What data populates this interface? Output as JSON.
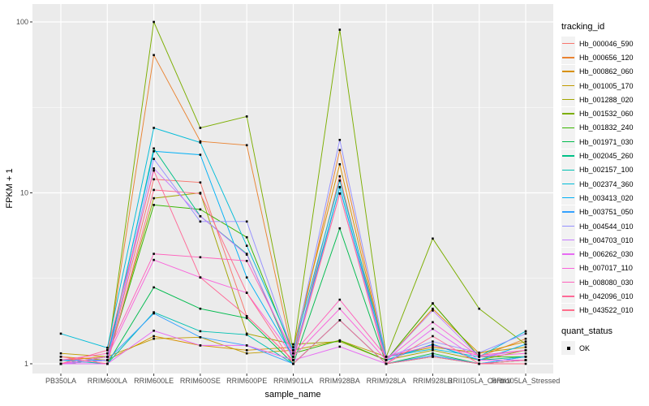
{
  "chart_data": {
    "type": "line",
    "title": "",
    "xlabel": "sample_name",
    "ylabel": "FPKM + 1",
    "y_scale": "log10",
    "ylim": [
      0.88,
      126
    ],
    "y_major_ticks": [
      1,
      10,
      100
    ],
    "y_minor_gridlines": [
      3.162,
      31.62
    ],
    "grid": "on",
    "panel_background": "#EBEBEB",
    "gridline_color": "#FFFFFF",
    "point_shape": "filled-square",
    "point_color": "#000000",
    "categories": [
      "PB350LA",
      "RRIM600LA",
      "RRIM600LE",
      "RRIM600SE",
      "RRIM600PE",
      "RRIM901LA",
      "RRIM928BA",
      "RRIM928LA",
      "RRIM928LB",
      "RRII105LA_Control",
      "RRII105LA_Stressed"
    ],
    "series": [
      {
        "name": "Hb_000046_590",
        "color": "#F8766D",
        "values": [
          1.0,
          1.05,
          12.0,
          11.5,
          1.9,
          1.05,
          12.5,
          1.0,
          1.1,
          1.0,
          1.05
        ]
      },
      {
        "name": "Hb_000656_120",
        "color": "#EA8331",
        "values": [
          1.05,
          1.1,
          64.0,
          20.0,
          19.0,
          1.1,
          17.8,
          1.05,
          2.26,
          1.1,
          1.4
        ]
      },
      {
        "name": "Hb_000862_060",
        "color": "#D89000",
        "values": [
          1.1,
          1.05,
          1.45,
          1.28,
          1.2,
          1.25,
          14.7,
          1.05,
          2.1,
          1.15,
          1.35
        ]
      },
      {
        "name": "Hb_001005_170",
        "color": "#C09B00",
        "values": [
          1.15,
          1.1,
          1.4,
          1.43,
          1.15,
          1.2,
          1.37,
          1.1,
          1.25,
          1.16,
          1.25
        ]
      },
      {
        "name": "Hb_001288_020",
        "color": "#A3A500",
        "values": [
          1.0,
          1.05,
          9.3,
          10.0,
          1.5,
          1.3,
          1.35,
          1.05,
          1.2,
          1.05,
          1.2
        ]
      },
      {
        "name": "Hb_001532_060",
        "color": "#7CAE00",
        "values": [
          1.0,
          1.1,
          100.0,
          24.0,
          28.0,
          1.2,
          90.0,
          1.1,
          5.4,
          2.1,
          1.3
        ]
      },
      {
        "name": "Hb_001832_240",
        "color": "#39B600",
        "values": [
          1.0,
          1.05,
          8.5,
          8.0,
          5.5,
          1.15,
          1.37,
          1.05,
          2.25,
          1.1,
          1.1
        ]
      },
      {
        "name": "Hb_001971_030",
        "color": "#00BB4E",
        "values": [
          1.0,
          1.0,
          2.8,
          2.1,
          1.85,
          1.0,
          6.2,
          1.0,
          1.15,
          1.0,
          1.05
        ]
      },
      {
        "name": "Hb_002045_260",
        "color": "#00C087",
        "values": [
          1.0,
          1.05,
          18.2,
          7.3,
          4.4,
          1.05,
          10.8,
          1.05,
          1.3,
          1.05,
          1.1
        ]
      },
      {
        "name": "Hb_002157_100",
        "color": "#00C0B2",
        "values": [
          1.05,
          1.0,
          2.0,
          1.55,
          1.48,
          1.0,
          1.8,
          1.0,
          1.1,
          1.0,
          1.1
        ]
      },
      {
        "name": "Hb_002374_360",
        "color": "#00BCD8",
        "values": [
          1.5,
          1.24,
          24.0,
          19.7,
          4.9,
          1.2,
          11.8,
          1.1,
          1.22,
          1.1,
          1.55
        ]
      },
      {
        "name": "Hb_003413_020",
        "color": "#00B0F6",
        "values": [
          1.0,
          1.1,
          17.5,
          16.7,
          3.2,
          1.1,
          10.8,
          1.05,
          1.3,
          1.05,
          1.3
        ]
      },
      {
        "name": "Hb_003751_050",
        "color": "#35A2FF",
        "values": [
          1.05,
          1.05,
          1.97,
          1.43,
          1.28,
          1.0,
          1.8,
          1.0,
          1.12,
          1.0,
          1.1
        ]
      },
      {
        "name": "Hb_004544_010",
        "color": "#9590FF",
        "values": [
          1.0,
          1.0,
          15.8,
          6.8,
          6.8,
          1.15,
          20.4,
          1.1,
          1.35,
          1.16,
          1.5
        ]
      },
      {
        "name": "Hb_004703_010",
        "color": "#C77CFF",
        "values": [
          1.0,
          1.05,
          13.9,
          7.3,
          4.35,
          1.1,
          9.9,
          1.05,
          2.05,
          1.1,
          1.2
        ]
      },
      {
        "name": "Hb_006262_030",
        "color": "#E76BF3",
        "values": [
          1.0,
          1.0,
          1.56,
          1.28,
          1.28,
          1.05,
          1.26,
          1.0,
          1.6,
          1.05,
          1.05
        ]
      },
      {
        "name": "Hb_007017_110",
        "color": "#FA62DB",
        "values": [
          1.0,
          1.1,
          4.05,
          3.2,
          2.6,
          1.1,
          2.1,
          1.05,
          1.75,
          1.1,
          1.15
        ]
      },
      {
        "name": "Hb_008080_030",
        "color": "#FF62BC",
        "values": [
          1.05,
          1.15,
          4.4,
          4.2,
          4.0,
          1.15,
          2.37,
          1.1,
          1.28,
          1.12,
          1.2
        ]
      },
      {
        "name": "Hb_042096_010",
        "color": "#FF6A98",
        "values": [
          1.0,
          1.2,
          13.5,
          3.2,
          1.9,
          1.05,
          9.9,
          1.0,
          1.45,
          1.0,
          1.05
        ]
      },
      {
        "name": "Hb_043522_010",
        "color": "#FF6E8C",
        "values": [
          1.1,
          1.0,
          10.4,
          9.9,
          2.6,
          1.0,
          1.8,
          1.0,
          1.1,
          1.0,
          1.0
        ]
      }
    ],
    "legend": {
      "position": "right",
      "color_title": "tracking_id",
      "shape_title": "quant_status",
      "shape_items": [
        "OK"
      ]
    }
  }
}
